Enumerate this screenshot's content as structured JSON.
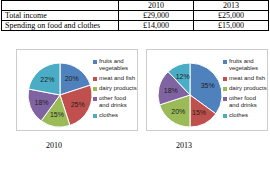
{
  "table": {
    "header": [
      "2010",
      "2013"
    ],
    "rows": [
      [
        "Total income",
        "£29,000",
        "£25,000"
      ],
      [
        "Spending on food and clothes",
        "£14,000",
        "£15,000"
      ]
    ]
  },
  "chart_data": [
    {
      "type": "pie",
      "title": "2010",
      "categories": [
        "fruits and vegetables",
        "meat and fish",
        "dairy products",
        "other food and drinks",
        "clothes"
      ],
      "values": [
        20,
        25,
        15,
        18,
        22
      ],
      "value_labels": [
        "20%",
        "25%",
        "15%",
        "18%",
        "22%"
      ],
      "colors": [
        "#4f81bd",
        "#c0504d",
        "#9bbb59",
        "#8064a2",
        "#4bacc6"
      ],
      "data_labels": true,
      "legend": "right"
    },
    {
      "type": "pie",
      "title": "2013",
      "categories": [
        "fruits and vegetables",
        "meat and fish",
        "dairy products",
        "other food and drinks",
        "clothes"
      ],
      "values": [
        35,
        15,
        20,
        18,
        12
      ],
      "value_labels": [
        "35%",
        "15%",
        "20%",
        "18%",
        "12%"
      ],
      "colors": [
        "#4f81bd",
        "#c0504d",
        "#9bbb59",
        "#8064a2",
        "#4bacc6"
      ],
      "data_labels": true,
      "legend": "right"
    }
  ]
}
